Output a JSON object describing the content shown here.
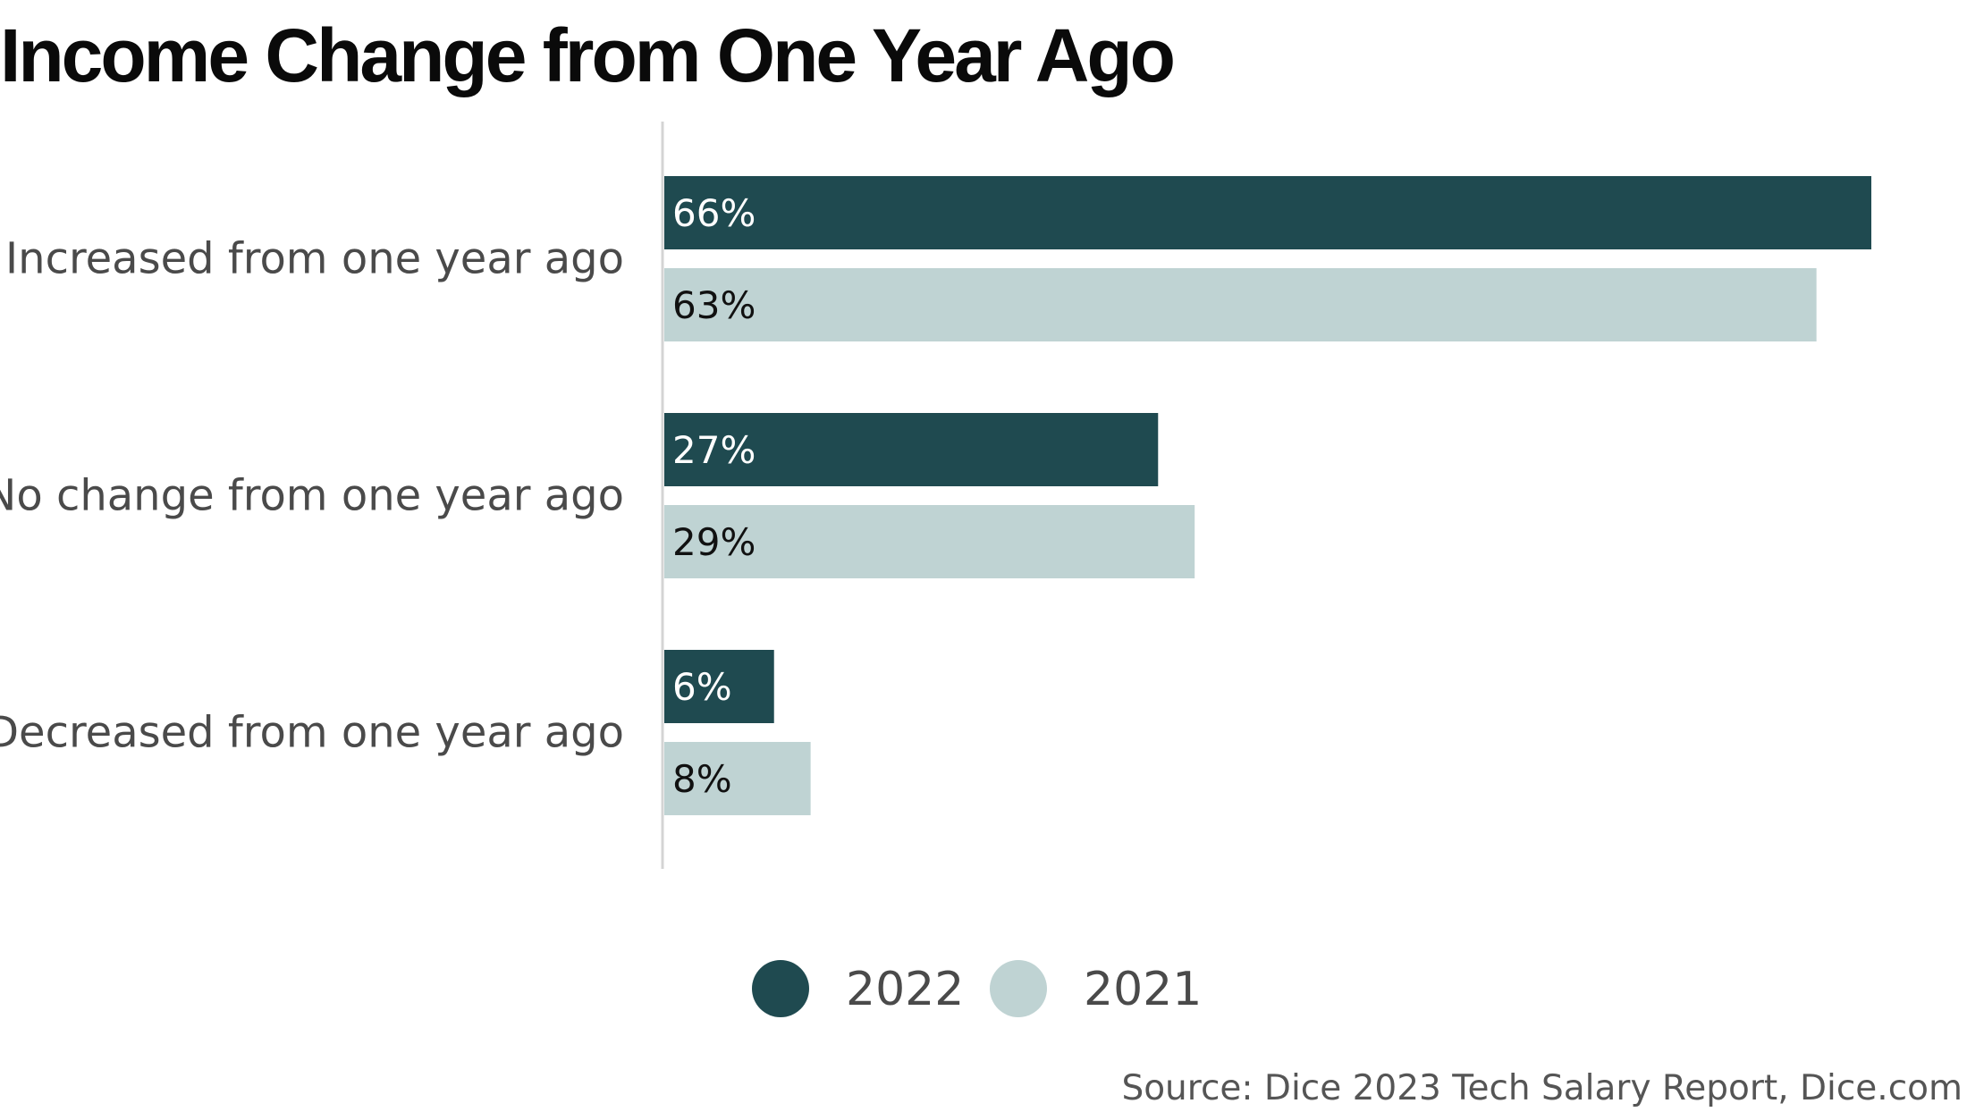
{
  "title": "Income Change from One Year Ago",
  "source": "Source: Dice 2023 Tech Salary Report, Dice.com",
  "colors": {
    "series_2022": "#1f4a50",
    "series_2021": "#bfd3d3",
    "axis": "#d4d4d4",
    "label_on_dark": "#ffffff",
    "label_on_light": "#111111"
  },
  "chart_data": {
    "type": "bar",
    "orientation": "horizontal",
    "title": "Income Change from One Year Ago",
    "categories": [
      "Increased from one year ago",
      "No change from one year ago",
      "Decreased from one year ago"
    ],
    "series": [
      {
        "name": "2022",
        "values": [
          66,
          27,
          6
        ],
        "labels": [
          "66%",
          "27%",
          "6%"
        ]
      },
      {
        "name": "2021",
        "values": [
          63,
          29,
          8
        ],
        "labels": [
          "63%",
          "29%",
          "8%"
        ]
      }
    ],
    "unit": "%",
    "xlim": [
      0,
      66
    ],
    "grid": false,
    "legend_position": "bottom-center"
  }
}
